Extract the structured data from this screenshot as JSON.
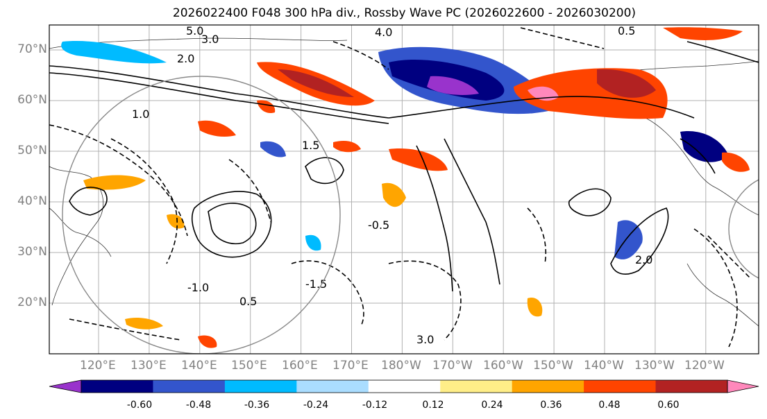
{
  "title": "2026022400 F048 300 hPa div., Rossby Wave PC (2026022600 - 2026030200)",
  "lat_labels": [
    "70°N",
    "60°N",
    "50°N",
    "40°N",
    "30°N",
    "20°N"
  ],
  "lon_labels": [
    "120°E",
    "130°E",
    "140°E",
    "150°E",
    "160°E",
    "170°E",
    "180°W",
    "170°W",
    "160°W",
    "150°W",
    "140°W",
    "130°W",
    "120°W"
  ],
  "colorbar": {
    "colors": [
      "#9933cc",
      "#000080",
      "#3355cc",
      "#00bbff",
      "#aaddff",
      "#ffffff",
      "#ffee88",
      "#ffa500",
      "#ff4400",
      "#b22222",
      "#ff88bb"
    ],
    "ticks": [
      "-0.60",
      "-0.48",
      "-0.36",
      "-0.24",
      "-0.12",
      "0.12",
      "0.24",
      "0.36",
      "0.48",
      "0.60"
    ]
  },
  "contour_labels": [
    "5.0",
    "3.0",
    "4.0",
    "0.5",
    "2.0",
    "1.0",
    "1.5",
    "-0.5",
    "-1.0",
    "-1.5",
    "0.5",
    "3.0",
    "2.0"
  ],
  "chart_data": {
    "type": "map",
    "title": "2026022400 F048 300 hPa div., Rossby Wave PC (2026022600 - 2026030200)",
    "projection": "equirectangular",
    "lon_range": [
      "~112°E",
      "~120°W+"
    ],
    "lat_range": [
      "~10°N",
      "~75°N"
    ],
    "shaded_field": "300 hPa divergence",
    "contour_field": "Rossby Wave PC",
    "colorbar_levels": [
      -0.6,
      -0.48,
      -0.36,
      -0.24,
      -0.12,
      0.12,
      0.24,
      0.36,
      0.48,
      0.6
    ]
  }
}
